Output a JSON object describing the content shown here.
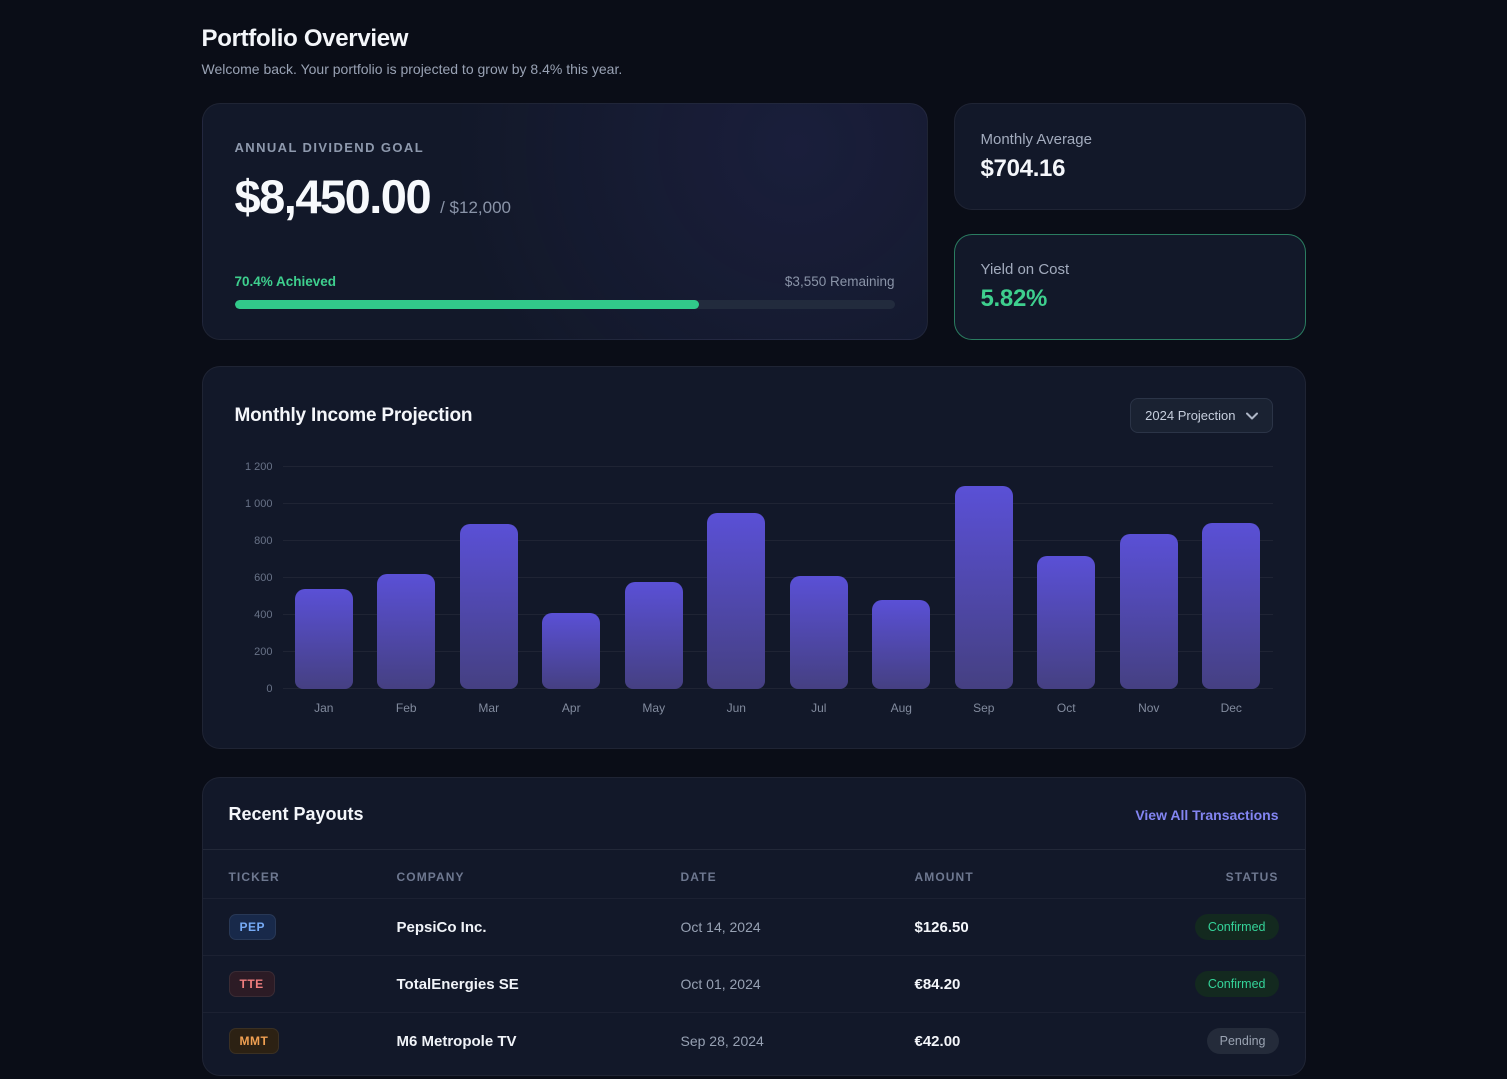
{
  "page": {
    "title": "Portfolio Overview",
    "subtitle": "Welcome back. Your portfolio is projected to grow by 8.4% this year."
  },
  "goal_card": {
    "label": "ANNUAL DIVIDEND GOAL",
    "current": "$8,450.00",
    "target": "/ $12,000",
    "achieved_label": "70.4% Achieved",
    "remaining_label": "$3,550 Remaining",
    "progress_pct": 70.4,
    "accent_color": "#31c98a"
  },
  "stats": {
    "monthly_average": {
      "label": "Monthly Average",
      "value": "$704.16"
    },
    "yield_on_cost": {
      "label": "Yield on Cost",
      "value": "5.82%",
      "color": "#3ecf8e"
    }
  },
  "chart_card": {
    "title": "Monthly Income Projection",
    "dropdown_value": "2024 Projection"
  },
  "chart_data": {
    "type": "bar",
    "title": "Monthly Income Projection",
    "categories": [
      "Jan",
      "Feb",
      "Mar",
      "Apr",
      "May",
      "Jun",
      "Jul",
      "Aug",
      "Sep",
      "Oct",
      "Nov",
      "Dec"
    ],
    "values": [
      540,
      620,
      890,
      410,
      580,
      950,
      610,
      480,
      1100,
      720,
      840,
      900
    ],
    "xlabel": "",
    "ylabel": "",
    "ylim": [
      0,
      1200
    ],
    "yticks": [
      0,
      200,
      400,
      600,
      800,
      1000,
      1200
    ],
    "ytick_labels": [
      "0",
      "200",
      "400",
      "600",
      "800",
      "1 000",
      "1 200"
    ],
    "grid": true,
    "legend": false,
    "bar_color_top": "#5a50d6",
    "bar_color_bottom": "#454082"
  },
  "payouts": {
    "title": "Recent Payouts",
    "link": "View All Transactions",
    "columns": [
      "TICKER",
      "COMPANY",
      "DATE",
      "AMOUNT",
      "STATUS"
    ],
    "rows": [
      {
        "ticker": "PEP",
        "ticker_color": "#76aaf5",
        "ticker_bg": "#18294a",
        "company": "PepsiCo Inc.",
        "date": "Oct 14, 2024",
        "amount": "$126.50",
        "status": "Confirmed",
        "status_color": "#34d399",
        "status_bg": "#13291f"
      },
      {
        "ticker": "TTE",
        "ticker_color": "#ef7e7e",
        "ticker_bg": "#2c1b25",
        "company": "TotalEnergies SE",
        "date": "Oct 01, 2024",
        "amount": "€84.20",
        "status": "Confirmed",
        "status_color": "#34d399",
        "status_bg": "#13291f"
      },
      {
        "ticker": "MMT",
        "ticker_color": "#f0a052",
        "ticker_bg": "#2c2113",
        "company": "M6 Metropole TV",
        "date": "Sep 28, 2024",
        "amount": "€42.00",
        "status": "Pending",
        "status_color": "#9aa3b2",
        "status_bg": "#242b3a"
      }
    ]
  }
}
